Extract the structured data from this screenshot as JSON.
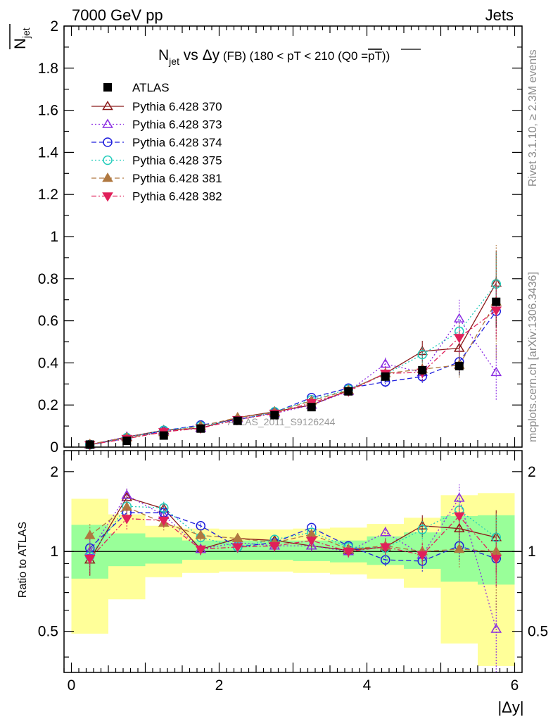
{
  "header": {
    "left": "7000 GeV pp",
    "right": "Jets"
  },
  "side_labels": {
    "rivet": "Rivet 3.1.10, ≥ 2.3M events",
    "mcplots": "mcplots.cern.ch [arXiv:1306.3436]"
  },
  "watermark": "ATLAS_2011_S9126244",
  "colors": {
    "ATLAS": "#000000",
    "p370": "#8b1a1a",
    "p373": "#8a2be2",
    "p374": "#1f1fdd",
    "p375": "#22ccbb",
    "p381": "#b07840",
    "p382": "#e0205a",
    "band_yellow": "#ffff99",
    "band_green": "#99ff99"
  },
  "chart_data": [
    {
      "type": "line",
      "title_parts": {
        "n": "N",
        "jet": "jet",
        "vs": " vs ",
        "dy": "Δy",
        "fb": " (FB) ",
        "range": "(180 < pT < 210 (Q0 =",
        "pt": "pT",
        "close": "))"
      },
      "ylabel_parts": {
        "n": "N",
        "jet": "jet"
      },
      "xlim": [
        -0.1,
        6.1
      ],
      "ylim": [
        0,
        2
      ],
      "yticks": [
        "0",
        "0.2",
        "0.4",
        "0.6",
        "0.8",
        "1",
        "1.2",
        "1.4",
        "1.6",
        "1.8",
        "2"
      ],
      "legend_placement": "top-left",
      "x": [
        0.25,
        0.75,
        1.25,
        1.75,
        2.25,
        2.75,
        3.25,
        3.75,
        4.25,
        4.75,
        5.25,
        5.75
      ],
      "data": {
        "name": "ATLAS",
        "values": [
          0.012,
          0.03,
          0.055,
          0.088,
          0.125,
          0.152,
          0.19,
          0.265,
          0.335,
          0.365,
          0.385,
          0.69
        ],
        "errors": [
          0.002,
          0.005,
          0.007,
          0.008,
          0.009,
          0.01,
          0.012,
          0.015,
          0.025,
          0.03,
          0.045,
          0.12
        ]
      },
      "series": [
        {
          "key": "p370",
          "name": "Pythia 6.428 370",
          "marker": "triangle-up-open",
          "dash": "",
          "values": [
            0.011,
            0.048,
            0.08,
            0.09,
            0.14,
            0.168,
            0.2,
            0.27,
            0.35,
            0.455,
            0.47,
            0.78
          ],
          "errors": [
            0.003,
            0.006,
            0.007,
            0.008,
            0.009,
            0.01,
            0.012,
            0.015,
            0.03,
            0.05,
            0.08,
            0.15
          ]
        },
        {
          "key": "p373",
          "name": "Pythia 6.428 373",
          "marker": "triangle-up-open",
          "dash": "2,3",
          "values": [
            0.012,
            0.049,
            0.075,
            0.09,
            0.135,
            0.16,
            0.2,
            0.265,
            0.395,
            0.355,
            0.61,
            0.355
          ],
          "errors": [
            0.003,
            0.006,
            0.007,
            0.008,
            0.009,
            0.01,
            0.012,
            0.015,
            0.03,
            0.04,
            0.09,
            0.13
          ]
        },
        {
          "key": "p374",
          "name": "Pythia 6.428 374",
          "marker": "circle-open",
          "dash": "7,4",
          "values": [
            0.012,
            0.042,
            0.078,
            0.105,
            0.13,
            0.165,
            0.235,
            0.28,
            0.31,
            0.335,
            0.405,
            0.645
          ],
          "errors": [
            0.003,
            0.006,
            0.007,
            0.008,
            0.009,
            0.01,
            0.012,
            0.015,
            0.025,
            0.03,
            0.06,
            0.12
          ]
        },
        {
          "key": "p375",
          "name": "Pythia 6.428 375",
          "marker": "circle-open",
          "dash": "2,3",
          "values": [
            0.011,
            0.045,
            0.08,
            0.1,
            0.13,
            0.168,
            0.225,
            0.275,
            0.345,
            0.44,
            0.55,
            0.775
          ],
          "errors": [
            0.003,
            0.006,
            0.007,
            0.008,
            0.009,
            0.01,
            0.012,
            0.015,
            0.03,
            0.04,
            0.07,
            0.15
          ]
        },
        {
          "key": "p381",
          "name": "Pythia 6.428 381",
          "marker": "triangle-up-filled",
          "dash": "7,4",
          "values": [
            0.014,
            0.045,
            0.07,
            0.1,
            0.14,
            0.165,
            0.22,
            0.27,
            0.35,
            0.37,
            0.39,
            0.69
          ],
          "errors": [
            0.003,
            0.006,
            0.007,
            0.008,
            0.009,
            0.01,
            0.012,
            0.015,
            0.03,
            0.04,
            0.06,
            0.27
          ]
        },
        {
          "key": "p382",
          "name": "Pythia 6.428 382",
          "marker": "triangle-down-filled",
          "dash": "7,3,2,3",
          "values": [
            0.011,
            0.04,
            0.072,
            0.09,
            0.13,
            0.16,
            0.21,
            0.265,
            0.35,
            0.355,
            0.52,
            0.65
          ],
          "errors": [
            0.003,
            0.006,
            0.007,
            0.008,
            0.009,
            0.01,
            0.012,
            0.015,
            0.03,
            0.04,
            0.07,
            0.14
          ]
        }
      ]
    },
    {
      "type": "line",
      "ylabel": "Ratio to ATLAS",
      "xlabel": "|Δy|",
      "xlim": [
        -0.1,
        6.1
      ],
      "ylim": [
        0.35,
        2.4
      ],
      "y_scale": "log",
      "xticks": [
        "0",
        "2",
        "4",
        "6"
      ],
      "yticks": [
        "0.5",
        "1",
        "2"
      ],
      "bins": [
        [
          0,
          0.5
        ],
        [
          0.5,
          1
        ],
        [
          1,
          1.5
        ],
        [
          1.5,
          2
        ],
        [
          2,
          2.5
        ],
        [
          2.5,
          3
        ],
        [
          3,
          3.5
        ],
        [
          3.5,
          4
        ],
        [
          4,
          4.5
        ],
        [
          4.5,
          5
        ],
        [
          5,
          5.5
        ],
        [
          5.5,
          6
        ]
      ],
      "band_green": [
        [
          0.79,
          1.26
        ],
        [
          0.88,
          1.17
        ],
        [
          0.9,
          1.13
        ],
        [
          0.93,
          1.1
        ],
        [
          0.93,
          1.1
        ],
        [
          0.93,
          1.1
        ],
        [
          0.92,
          1.1
        ],
        [
          0.91,
          1.1
        ],
        [
          0.89,
          1.14
        ],
        [
          0.86,
          1.18
        ],
        [
          0.77,
          1.36
        ],
        [
          0.75,
          1.37
        ]
      ],
      "band_yellow": [
        [
          0.49,
          1.58
        ],
        [
          0.66,
          1.38
        ],
        [
          0.8,
          1.25
        ],
        [
          0.83,
          1.22
        ],
        [
          0.84,
          1.21
        ],
        [
          0.84,
          1.21
        ],
        [
          0.83,
          1.22
        ],
        [
          0.82,
          1.23
        ],
        [
          0.79,
          1.27
        ],
        [
          0.73,
          1.34
        ],
        [
          0.45,
          1.63
        ],
        [
          0.37,
          1.66
        ]
      ],
      "series": [
        {
          "key": "p370",
          "values": [
            0.93,
            1.6,
            1.45,
            1.02,
            1.12,
            1.1,
            1.05,
            1.01,
            1.04,
            1.25,
            1.22,
            1.13
          ],
          "errors": [
            0.12,
            0.12,
            0.08,
            0.05,
            0.05,
            0.05,
            0.05,
            0.05,
            0.07,
            0.12,
            0.15,
            0.3
          ]
        },
        {
          "key": "p373",
          "values": [
            1.0,
            1.63,
            1.37,
            1.02,
            1.08,
            1.05,
            1.05,
            1.0,
            1.18,
            0.97,
            1.59,
            0.51
          ],
          "errors": [
            0.12,
            0.12,
            0.08,
            0.05,
            0.05,
            0.05,
            0.05,
            0.05,
            0.07,
            0.1,
            0.2,
            0.18
          ]
        },
        {
          "key": "p374",
          "values": [
            1.03,
            1.4,
            1.4,
            1.25,
            1.04,
            1.08,
            1.23,
            1.05,
            0.93,
            0.92,
            1.05,
            0.94
          ],
          "errors": [
            0.12,
            0.12,
            0.08,
            0.05,
            0.05,
            0.05,
            0.05,
            0.05,
            0.05,
            0.08,
            0.12,
            0.2
          ]
        },
        {
          "key": "p375",
          "values": [
            0.96,
            1.48,
            1.46,
            1.13,
            1.04,
            1.11,
            1.18,
            1.04,
            1.03,
            1.21,
            1.43,
            1.13
          ],
          "errors": [
            0.12,
            0.12,
            0.08,
            0.05,
            0.05,
            0.05,
            0.05,
            0.05,
            0.07,
            0.1,
            0.15,
            0.25
          ]
        },
        {
          "key": "p381",
          "values": [
            1.15,
            1.47,
            1.28,
            1.15,
            1.12,
            1.08,
            1.16,
            1.02,
            1.05,
            1.0,
            1.02,
            1.0
          ],
          "errors": [
            0.12,
            0.12,
            0.08,
            0.05,
            0.05,
            0.05,
            0.05,
            0.05,
            0.07,
            0.1,
            0.15,
            0.4
          ]
        },
        {
          "key": "p382",
          "values": [
            0.94,
            1.33,
            1.31,
            1.02,
            1.04,
            1.05,
            1.1,
            1.0,
            1.04,
            0.97,
            1.36,
            0.94
          ],
          "errors": [
            0.12,
            0.12,
            0.08,
            0.05,
            0.05,
            0.05,
            0.05,
            0.05,
            0.07,
            0.1,
            0.15,
            0.2
          ]
        }
      ]
    }
  ]
}
